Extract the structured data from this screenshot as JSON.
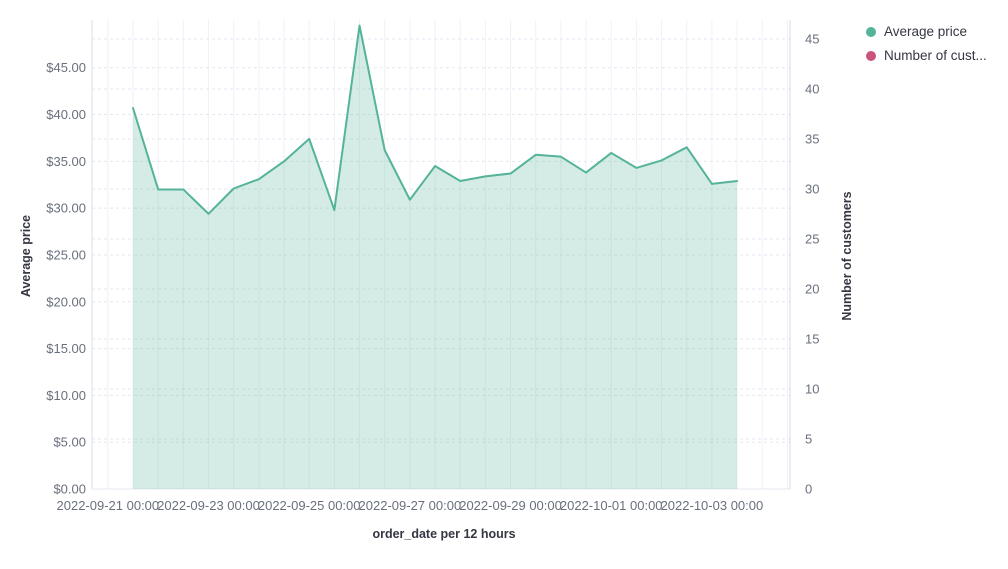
{
  "chart": {
    "legend": {
      "items": [
        {
          "label": "Average price",
          "color": "#54B399"
        },
        {
          "label": "Number of cust...",
          "color": "#CA547C"
        }
      ]
    }
  },
  "chart_data": {
    "type": "area",
    "title": "",
    "xlabel": "order_date per 12 hours",
    "ylabel_left": "Average price",
    "ylabel_right": "Number of customers",
    "x": [
      "2022-09-21 12:00",
      "2022-09-22 00:00",
      "2022-09-22 12:00",
      "2022-09-23 00:00",
      "2022-09-23 12:00",
      "2022-09-24 00:00",
      "2022-09-24 12:00",
      "2022-09-25 00:00",
      "2022-09-25 12:00",
      "2022-09-26 00:00",
      "2022-09-26 12:00",
      "2022-09-27 00:00",
      "2022-09-27 12:00",
      "2022-09-28 00:00",
      "2022-09-28 12:00",
      "2022-09-29 00:00",
      "2022-09-29 12:00",
      "2022-09-30 00:00",
      "2022-09-30 12:00",
      "2022-10-01 00:00",
      "2022-10-01 12:00",
      "2022-10-02 00:00",
      "2022-10-02 12:00",
      "2022-10-03 00:00",
      "2022-10-03 12:00"
    ],
    "series": [
      {
        "name": "Average price",
        "axis": "left",
        "color": "#54B399",
        "fill_opacity": 0.25,
        "values": [
          40.7,
          32.0,
          32.0,
          29.4,
          32.1,
          33.1,
          35.0,
          37.4,
          29.8,
          49.5,
          36.2,
          30.9,
          34.5,
          32.9,
          33.4,
          33.7,
          35.7,
          35.5,
          33.8,
          35.9,
          34.3,
          35.1,
          36.5,
          32.6,
          32.9
        ]
      },
      {
        "name": "Number of customers",
        "axis": "right",
        "color": "#CA547C",
        "values": []
      }
    ],
    "left_axis": {
      "title": "Average price",
      "tick_labels": [
        "$0.00",
        "$5.00",
        "$10.00",
        "$15.00",
        "$20.00",
        "$25.00",
        "$30.00",
        "$35.00",
        "$40.00",
        "$45.00"
      ],
      "tick_values": [
        0,
        5,
        10,
        15,
        20,
        25,
        30,
        35,
        40,
        45
      ],
      "range": [
        0,
        50.1
      ]
    },
    "right_axis": {
      "title": "Number of customers",
      "tick_labels": [
        "0",
        "5",
        "10",
        "15",
        "20",
        "25",
        "30",
        "35",
        "40",
        "45"
      ],
      "tick_values": [
        0,
        5,
        10,
        15,
        20,
        25,
        30,
        35,
        40,
        45
      ],
      "range": [
        0,
        46.9
      ]
    },
    "x_axis": {
      "title": "order_date per 12 hours",
      "tick_labels": [
        "2022-09-21 00:00",
        "2022-09-23 00:00",
        "2022-09-25 00:00",
        "2022-09-27 00:00",
        "2022-09-29 00:00",
        "2022-10-01 00:00",
        "2022-10-03 00:00"
      ],
      "tick_point_indices": [
        -1,
        3,
        7,
        11,
        15,
        19,
        23
      ]
    },
    "grid": {
      "horizontal": "dashed",
      "vertical": "solid"
    },
    "legend_position": "top-right"
  },
  "colors": {
    "series_green": "#54B399",
    "series_pink": "#CA547C",
    "area_fill_base": "#54B399",
    "tick_text": "#69707D",
    "axis_title_text": "#343741",
    "grid_dashed": "#D8DEEA",
    "grid_vertical": "#EFF2F7",
    "axis_line": "#D8DDE8"
  }
}
